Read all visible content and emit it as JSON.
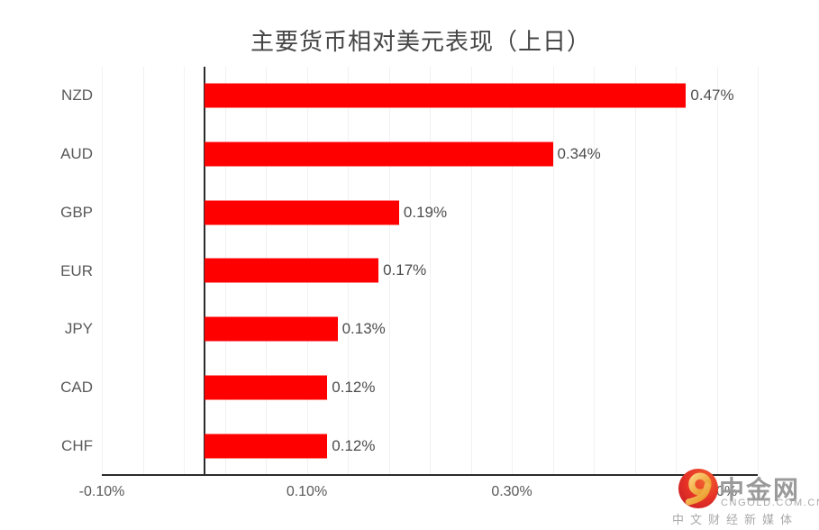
{
  "page": {
    "background": "#ffffff"
  },
  "chart_data": {
    "type": "bar",
    "orientation": "horizontal",
    "title": "主要货币相对美元表现（上日）",
    "categories": [
      "NZD",
      "AUD",
      "GBP",
      "EUR",
      "JPY",
      "CAD",
      "CHF"
    ],
    "values": [
      0.47,
      0.34,
      0.19,
      0.17,
      0.13,
      0.12,
      0.12
    ],
    "value_labels": [
      "0.47%",
      "0.34%",
      "0.19%",
      "0.17%",
      "0.13%",
      "0.12%",
      "0.12%"
    ],
    "unit": "%",
    "xlim": [
      -0.1,
      0.54
    ],
    "x_ticks": [
      {
        "value": -0.1,
        "label": "-0.10%"
      },
      {
        "value": 0.1,
        "label": "0.10%"
      },
      {
        "value": 0.3,
        "label": "0.30%"
      },
      {
        "value": 0.5,
        "label": "0.50%"
      }
    ],
    "gridline_step": 0.04,
    "grid": "on",
    "legend": "none",
    "bar_color": "#ff0000",
    "axis_color": "#2b2b2b",
    "gridline_color": "#f1f1f1",
    "label_color": "#595959"
  },
  "watermark": {
    "brand": "中金网",
    "domain": "CNGOLD.COM.CN",
    "tagline": "中文财经新媒体",
    "logo_icon": "gold-swirl-icon",
    "logo_colors": {
      "circle_outer": "#d8232a",
      "circle_inner": "#f2622f",
      "swirl_light": "#fbd07a",
      "swirl_dark": "#e8921e"
    }
  }
}
